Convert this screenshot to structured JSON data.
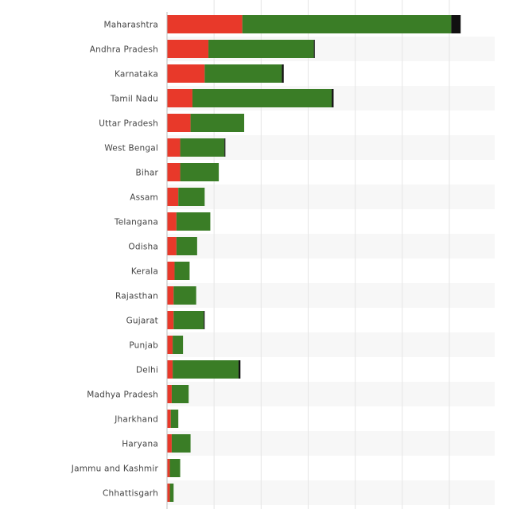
{
  "chart_data": {
    "type": "bar",
    "orientation": "horizontal",
    "stacked": true,
    "title": "",
    "xlabel": "",
    "ylabel": "",
    "categories": [
      "Maharashtra",
      "Andhra Pradesh",
      "Karnataka",
      "Tamil Nadu",
      "Uttar Pradesh",
      "West Bengal",
      "Bihar",
      "Assam",
      "Telangana",
      "Odisha",
      "Kerala",
      "Rajasthan",
      "Gujarat",
      "Punjab",
      "Delhi",
      "Madhya Pradesh",
      "Jharkhand",
      "Haryana",
      "Jammu and Kashmir",
      "Chhattisgarh"
    ],
    "series": [
      {
        "color": "#e8392a",
        "values": [
          8.0,
          4.4,
          4.0,
          2.7,
          2.5,
          1.4,
          1.4,
          1.2,
          1.0,
          1.0,
          0.8,
          0.7,
          0.7,
          0.6,
          0.6,
          0.5,
          0.4,
          0.5,
          0.3,
          0.3
        ]
      },
      {
        "color": "#3a7d26",
        "values": [
          22.2,
          11.2,
          8.2,
          14.8,
          5.7,
          4.7,
          4.1,
          2.8,
          3.6,
          2.2,
          1.6,
          2.4,
          3.2,
          1.1,
          7.0,
          1.8,
          0.8,
          2.0,
          1.1,
          0.4
        ]
      },
      {
        "color": "#111111",
        "values": [
          1.0,
          0.1,
          0.2,
          0.2,
          0.0,
          0.1,
          0.0,
          0.0,
          0.0,
          0.0,
          0.0,
          0.0,
          0.1,
          0.0,
          0.2,
          0.0,
          0.0,
          0.0,
          0.0,
          0.0
        ]
      }
    ],
    "xlim": [
      0,
      35
    ],
    "grid": true,
    "legend": "none",
    "alternating_row_bands": true,
    "tick_labels_visible": false
  }
}
